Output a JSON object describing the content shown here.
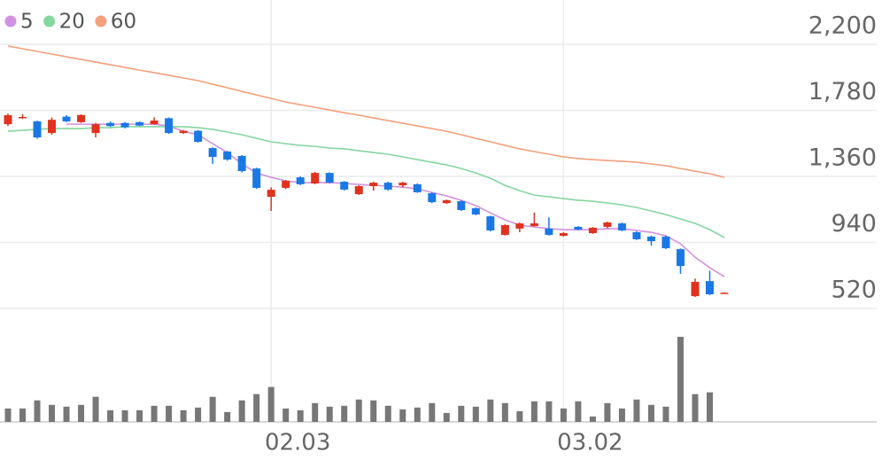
{
  "chart_data": {
    "type": "candlestick",
    "categories": [
      null,
      null,
      null,
      null,
      null,
      null,
      null,
      null,
      null,
      null,
      null,
      null,
      null,
      null,
      null,
      null,
      null,
      null,
      "02.03",
      null,
      null,
      null,
      null,
      null,
      null,
      null,
      null,
      null,
      null,
      null,
      null,
      null,
      null,
      null,
      null,
      null,
      null,
      null,
      "03.02",
      null,
      null,
      null,
      null,
      null,
      null,
      null,
      null,
      null,
      null,
      null
    ],
    "open": [
      1692,
      1730,
      1710,
      1636,
      1740,
      1705,
      1636,
      1700,
      1700,
      1705,
      1692,
      1730,
      1636,
      1650,
      1540,
      1518,
      1490,
      1410,
      1230,
      1287,
      1354,
      1315,
      1382,
      1326,
      1247,
      1298,
      1320,
      1303,
      1310,
      1253,
      1190,
      1202,
      1157,
      1106,
      988,
      1028,
      1044,
      1028,
      982,
      1039,
      999,
      1039,
      1061,
      1005,
      977,
      977,
      897,
      598,
      694,
      615
    ],
    "high": [
      1760,
      1755,
      1715,
      1735,
      1750,
      1755,
      1700,
      1710,
      1705,
      1710,
      1735,
      1735,
      1655,
      1655,
      1545,
      1522,
      1495,
      1415,
      1290,
      1337,
      1360,
      1388,
      1386,
      1330,
      1303,
      1326,
      1326,
      1326,
      1315,
      1258,
      1213,
      1207,
      1162,
      1110,
      1055,
      1066,
      1130,
      1100,
      1005,
      1044,
      1038,
      1072,
      1066,
      1010,
      983,
      983,
      902,
      710,
      760,
      622
    ],
    "low": [
      1680,
      1725,
      1600,
      1625,
      1705,
      1700,
      1608,
      1675,
      1665,
      1680,
      1690,
      1630,
      1630,
      1575,
      1440,
      1460,
      1385,
      1280,
      1140,
      1280,
      1305,
      1310,
      1315,
      1270,
      1242,
      1270,
      1270,
      1290,
      1255,
      1190,
      1185,
      1140,
      1113,
      1010,
      983,
      1005,
      1040,
      983,
      977,
      1017,
      994,
      1030,
      1011,
      955,
      920,
      898,
      740,
      593,
      605,
      613
    ],
    "close": [
      1749,
      1738,
      1608,
      1720,
      1710,
      1750,
      1692,
      1680,
      1672,
      1683,
      1715,
      1636,
      1650,
      1580,
      1484,
      1467,
      1394,
      1287,
      1275,
      1332,
      1310,
      1382,
      1320,
      1276,
      1298,
      1320,
      1276,
      1320,
      1259,
      1196,
      1208,
      1146,
      1118,
      1016,
      1050,
      1061,
      1061,
      988,
      999,
      1022,
      1033,
      1067,
      1016,
      960,
      948,
      903,
      790,
      689,
      610,
      620
    ],
    "up_color": "#e0321e",
    "down_color": "#1a78e6",
    "series": [
      {
        "name": "5",
        "color": "#d291e0",
        "values": [
          null,
          null,
          null,
          null,
          1692,
          1692,
          1692,
          1692,
          1692,
          1692,
          1692,
          1681,
          1647,
          1625,
          1568,
          1512,
          1439,
          1382,
          1354,
          1331,
          1320,
          1320,
          1320,
          1315,
          1309,
          1303,
          1298,
          1292,
          1281,
          1258,
          1236,
          1208,
          1174,
          1128,
          1083,
          1050,
          1038,
          1027,
          1021,
          1021,
          1021,
          1027,
          1027,
          1016,
          1004,
          982,
          931,
          846,
          779,
          722
        ]
      },
      {
        "name": "20",
        "color": "#86d6a0",
        "values": [
          1647,
          1653,
          1659,
          1664,
          1664,
          1664,
          1670,
          1670,
          1676,
          1676,
          1676,
          1676,
          1676,
          1670,
          1659,
          1642,
          1625,
          1602,
          1580,
          1568,
          1557,
          1551,
          1540,
          1535,
          1523,
          1512,
          1501,
          1484,
          1467,
          1450,
          1433,
          1410,
          1382,
          1348,
          1303,
          1269,
          1241,
          1230,
          1219,
          1208,
          1202,
          1191,
          1179,
          1162,
          1140,
          1117,
          1089,
          1061,
          1021,
          971
        ]
      },
      {
        "name": "60",
        "color": "#f4a07c",
        "values": [
          2189,
          2172,
          2155,
          2138,
          2121,
          2104,
          2087,
          2070,
          2053,
          2036,
          2020,
          2003,
          1986,
          1969,
          1946,
          1924,
          1901,
          1878,
          1856,
          1833,
          1816,
          1799,
          1782,
          1765,
          1749,
          1732,
          1715,
          1698,
          1681,
          1664,
          1647,
          1625,
          1602,
          1580,
          1557,
          1535,
          1518,
          1501,
          1484,
          1473,
          1467,
          1461,
          1456,
          1450,
          1439,
          1428,
          1410,
          1393,
          1377,
          1354
        ]
      }
    ],
    "volume": {
      "color": "#777777",
      "values": [
        15,
        15,
        24,
        19,
        17,
        19,
        28,
        13,
        13,
        13,
        18,
        18,
        13,
        16,
        28,
        11,
        24,
        31,
        39,
        15,
        13,
        21,
        17,
        18,
        25,
        24,
        18,
        14,
        16,
        21,
        10,
        18,
        17,
        25,
        21,
        12,
        23,
        23,
        15,
        23,
        6,
        21,
        15,
        25,
        19,
        17,
        95,
        31,
        33,
        null
      ]
    },
    "ylim": [
      520,
      2482
    ],
    "yticks": [
      {
        "value": 520,
        "label": "520"
      },
      {
        "value": 940,
        "label": "940"
      },
      {
        "value": 1360,
        "label": "1,360"
      },
      {
        "value": 1780,
        "label": "1,780"
      },
      {
        "value": 2200,
        "label": "2,200"
      }
    ],
    "grid": true
  }
}
